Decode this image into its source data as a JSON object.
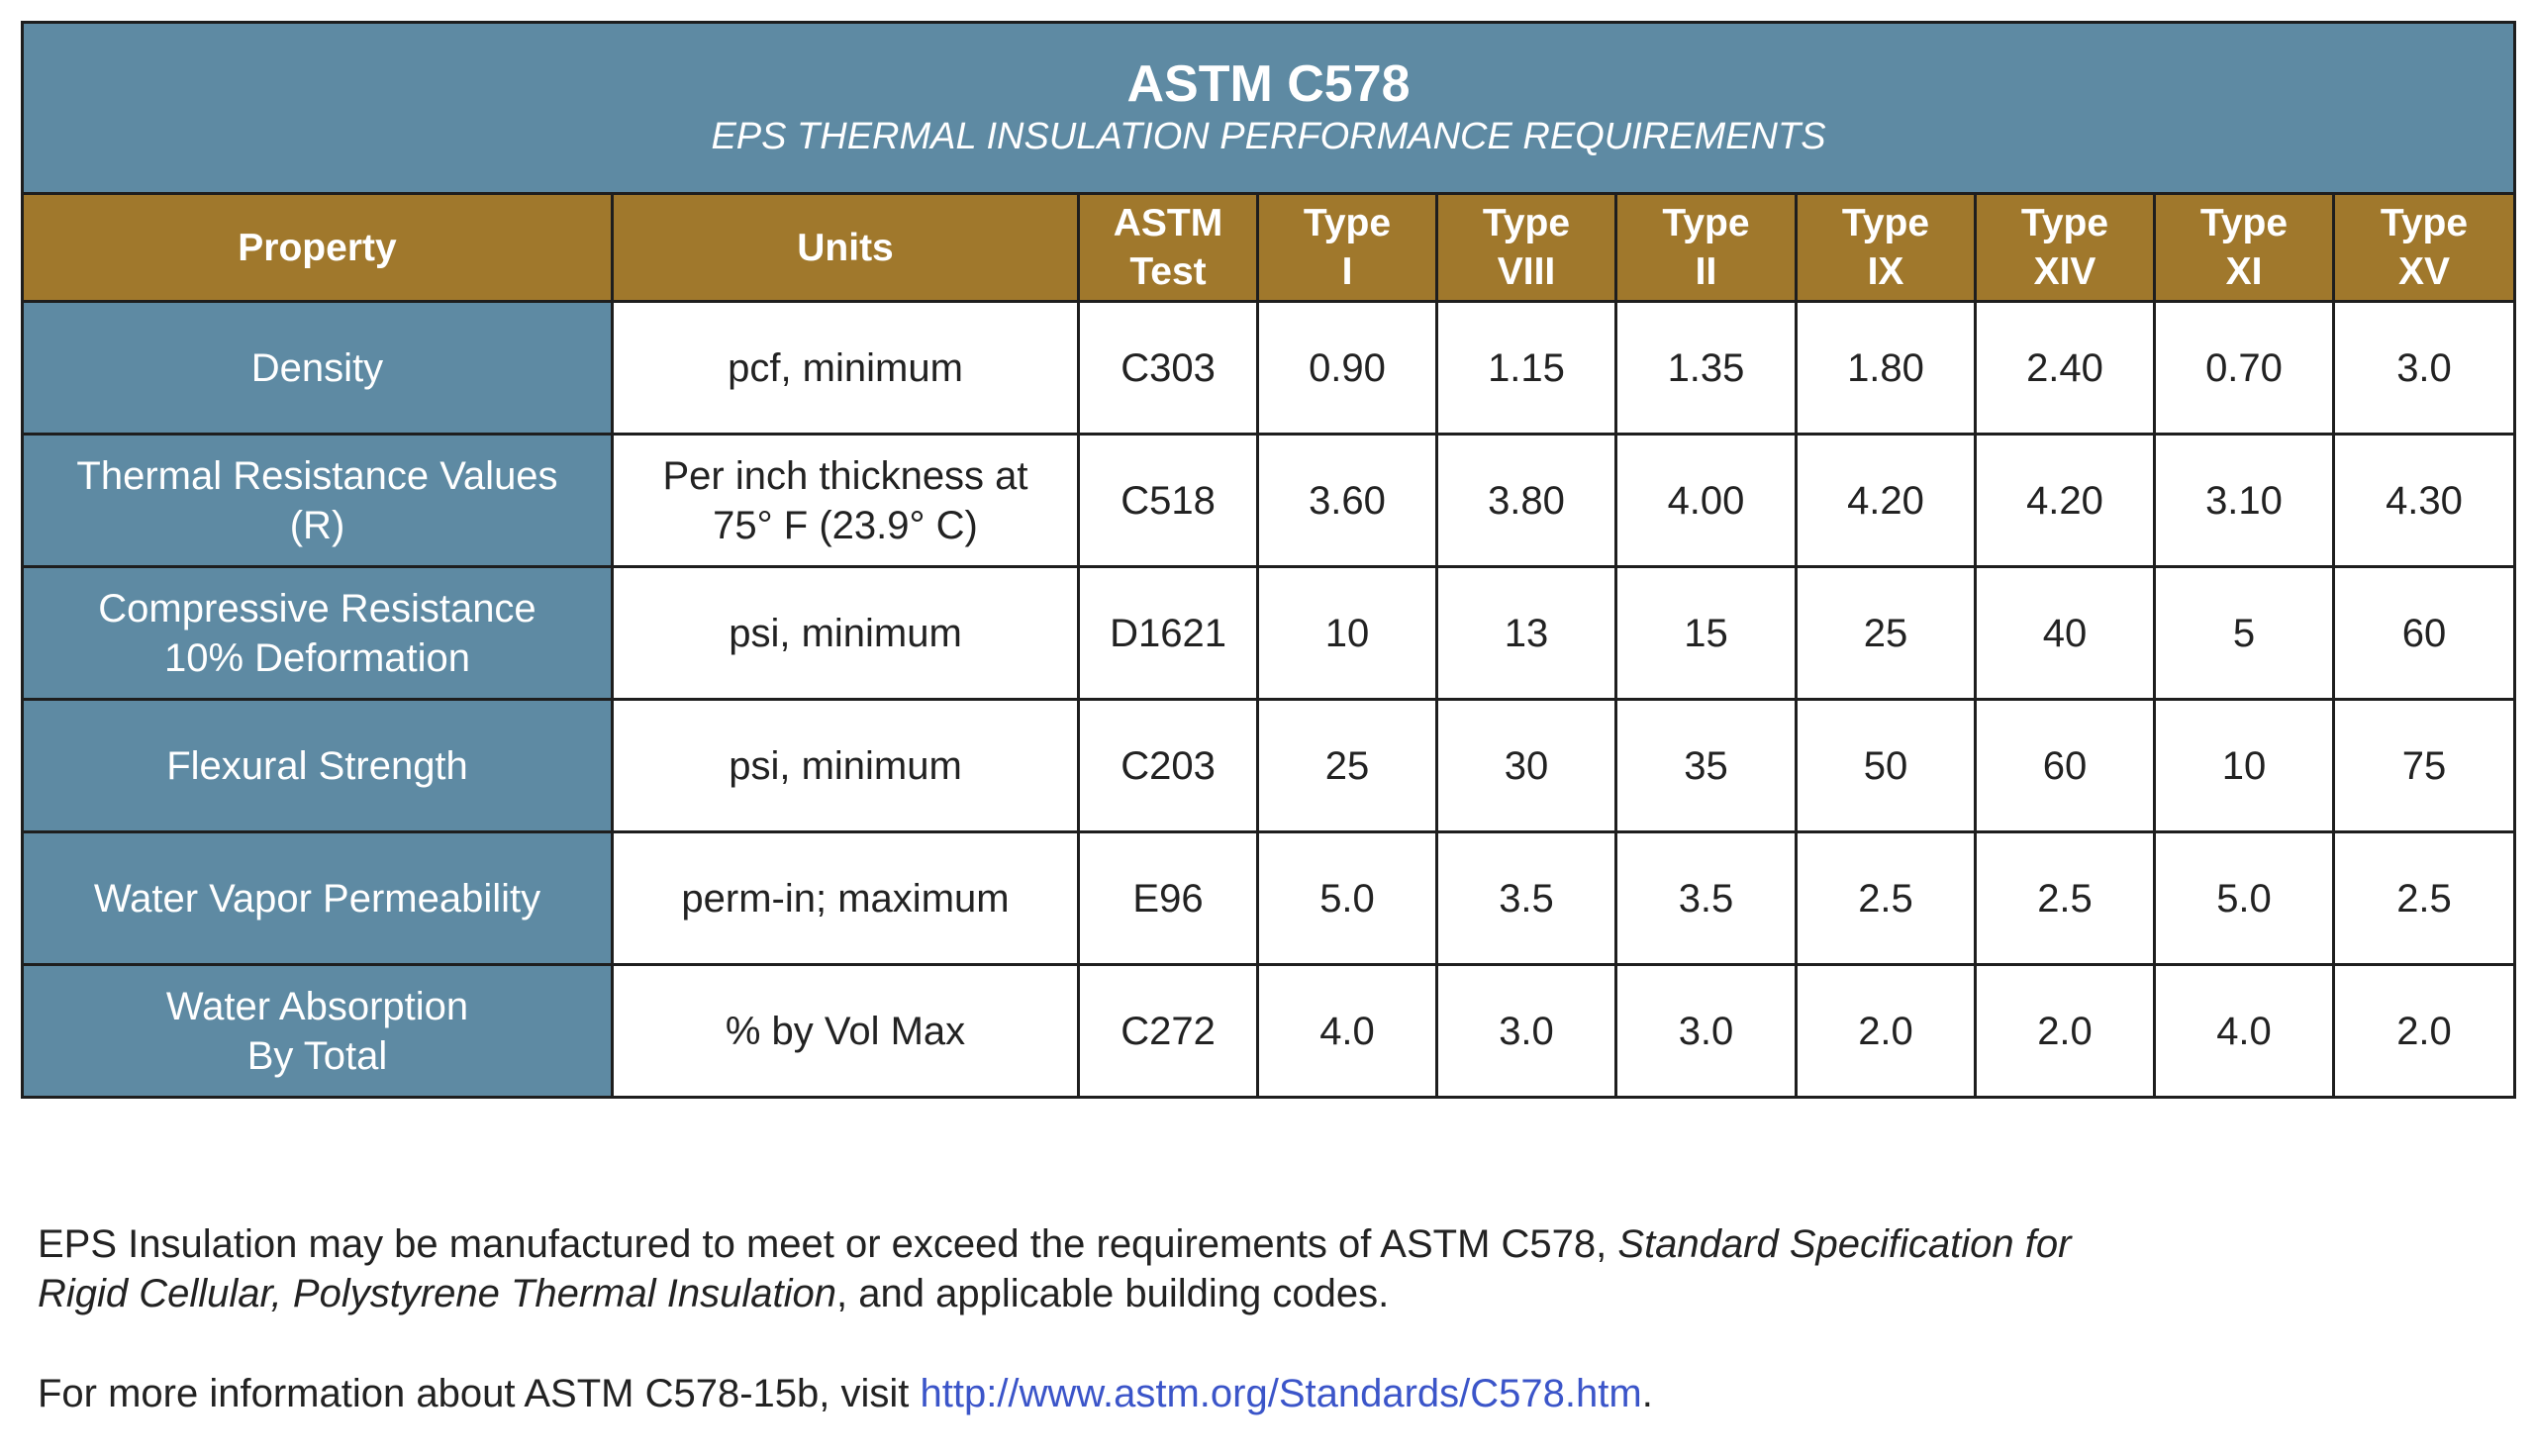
{
  "title": "ASTM C578",
  "subtitle": "EPS THERMAL INSULATION PERFORMANCE REQUIREMENTS",
  "colors": {
    "title_bg": "#5e8aa3",
    "header_bg": "#a0782c",
    "link": "#3b55c9"
  },
  "headers": [
    [
      "Property"
    ],
    [
      "Units"
    ],
    [
      "ASTM",
      "Test"
    ],
    [
      "Type",
      "I"
    ],
    [
      "Type",
      "VIII"
    ],
    [
      "Type",
      "II"
    ],
    [
      "Type",
      "IX"
    ],
    [
      "Type",
      "XIV"
    ],
    [
      "Type",
      "XI"
    ],
    [
      "Type",
      "XV"
    ]
  ],
  "rows": [
    {
      "property": [
        "Density"
      ],
      "units": [
        "pcf, minimum"
      ],
      "test": "C303",
      "values": [
        "0.90",
        "1.15",
        "1.35",
        "1.80",
        "2.40",
        "0.70",
        "3.0"
      ]
    },
    {
      "property": [
        "Thermal Resistance Values",
        "(R)"
      ],
      "units": [
        "Per inch thickness at",
        "75° F (23.9° C)"
      ],
      "test": "C518",
      "values": [
        "3.60",
        "3.80",
        "4.00",
        "4.20",
        "4.20",
        "3.10",
        "4.30"
      ]
    },
    {
      "property": [
        "Compressive Resistance",
        "10% Deformation"
      ],
      "units": [
        "psi, minimum"
      ],
      "test": "D1621",
      "values": [
        "10",
        "13",
        "15",
        "25",
        "40",
        "5",
        "60"
      ]
    },
    {
      "property": [
        "Flexural Strength"
      ],
      "units": [
        "psi, minimum"
      ],
      "test": "C203",
      "values": [
        "25",
        "30",
        "35",
        "50",
        "60",
        "10",
        "75"
      ]
    },
    {
      "property": [
        "Water Vapor Permeability"
      ],
      "units": [
        "perm-in; maximum"
      ],
      "test": "E96",
      "values": [
        "5.0",
        "3.5",
        "3.5",
        "2.5",
        "2.5",
        "5.0",
        "2.5"
      ]
    },
    {
      "property": [
        "Water Absorption",
        "By Total"
      ],
      "units": [
        "% by Vol Max"
      ],
      "test": "C272",
      "values": [
        "4.0",
        "3.0",
        "3.0",
        "2.0",
        "2.0",
        "4.0",
        "2.0"
      ]
    }
  ],
  "footer": {
    "p1_a": "EPS Insulation may be manufactured to meet or exceed the requirements of ASTM C578, ",
    "p1_b": "Standard Specification for",
    "p1_c": "Rigid Cellular, Polystyrene Thermal Insulation",
    "p1_d": ", and applicable building codes.",
    "p2_a": "For more information about ASTM C578-15b, visit ",
    "p2_link": "http://www.astm.org/Standards/C578.htm",
    "p2_end": "."
  }
}
